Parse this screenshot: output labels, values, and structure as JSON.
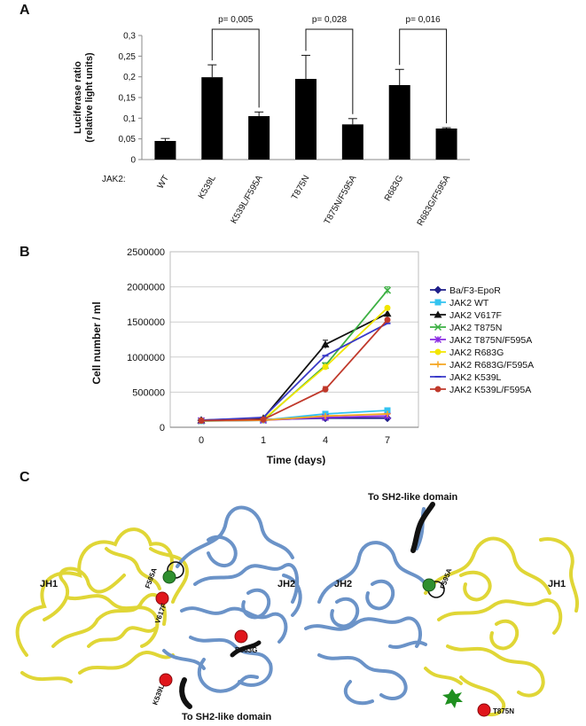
{
  "panels": {
    "a": "A",
    "b": "B",
    "c": "C"
  },
  "chart_data": [
    {
      "type": "bar",
      "ylabel": "Luciferase ratio",
      "ylabel2": "(relative light units)",
      "ylim": [
        0,
        0.3
      ],
      "yticks": [
        "0",
        "0,05",
        "0,1",
        "0,15",
        "0,2",
        "0,25",
        "0,3"
      ],
      "row_label": "JAK2:",
      "categories": [
        "WT",
        "K539L",
        "K539L/F595A",
        "T875N",
        "T875N/F595A",
        "R683G",
        "R683G/F595A"
      ],
      "values": [
        0.045,
        0.199,
        0.105,
        0.195,
        0.085,
        0.18,
        0.075
      ],
      "errors": [
        0.006,
        0.03,
        0.01,
        0.057,
        0.014,
        0.038,
        0.002
      ],
      "bar_color": "#000000",
      "brackets": [
        {
          "from": 1,
          "to": 2,
          "label": "p= 0,005"
        },
        {
          "from": 3,
          "to": 4,
          "label": "p= 0,028"
        },
        {
          "from": 5,
          "to": 6,
          "label": "p= 0,016"
        }
      ]
    },
    {
      "type": "line",
      "xlabel": "Time (days)",
      "ylabel": "Cell number / ml",
      "x": [
        "0",
        "1",
        "4",
        "7"
      ],
      "ylim": [
        0,
        2500000
      ],
      "yticks": [
        "0",
        "500000",
        "1000000",
        "1500000",
        "2000000",
        "2500000"
      ],
      "grid": true,
      "legend_position": "right",
      "series": [
        {
          "name": "Ba/F3-EpoR",
          "color": "#1f1f8a",
          "marker": "diamond",
          "values": [
            100000,
            110000,
            130000,
            130000
          ],
          "err": [
            0,
            0,
            0,
            0
          ]
        },
        {
          "name": "JAK2 WT",
          "color": "#33c3f0",
          "marker": "square",
          "values": [
            90000,
            100000,
            190000,
            240000
          ],
          "err": [
            0,
            0,
            20000,
            20000
          ]
        },
        {
          "name": "JAK2 V617F",
          "color": "#111111",
          "marker": "triangle",
          "values": [
            100000,
            130000,
            1180000,
            1620000
          ],
          "err": [
            0,
            0,
            60000,
            60000
          ]
        },
        {
          "name": "JAK2 T875N",
          "color": "#3cb043",
          "marker": "x",
          "values": [
            90000,
            100000,
            880000,
            1950000
          ],
          "err": [
            0,
            0,
            40000,
            50000
          ]
        },
        {
          "name": "JAK2 T875N/F595A",
          "color": "#8a2be2",
          "marker": "star",
          "values": [
            95000,
            100000,
            140000,
            160000
          ],
          "err": [
            0,
            0,
            0,
            0
          ]
        },
        {
          "name": "JAK2 R683G",
          "color": "#f2e600",
          "marker": "circle",
          "values": [
            95000,
            110000,
            860000,
            1700000
          ],
          "err": [
            0,
            0,
            0,
            0
          ]
        },
        {
          "name": "JAK2 R683G/F595A",
          "color": "#f5a623",
          "marker": "plus",
          "values": [
            95000,
            100000,
            160000,
            190000
          ],
          "err": [
            0,
            0,
            0,
            0
          ]
        },
        {
          "name": "JAK2 K539L",
          "color": "#3a3ac8",
          "marker": "line",
          "values": [
            100000,
            140000,
            1020000,
            1480000
          ],
          "err": [
            0,
            0,
            0,
            0
          ]
        },
        {
          "name": "JAK2 K539L/F595A",
          "color": "#c0392b",
          "marker": "circle",
          "values": [
            95000,
            110000,
            540000,
            1530000
          ],
          "err": [
            0,
            0,
            40000,
            0
          ]
        }
      ]
    }
  ],
  "structure": {
    "left": {
      "jh1": "JH1",
      "jh2": "JH2",
      "f595a": "F595A",
      "v617f": "V617F",
      "r683g": "R683G",
      "k539l": "K539L",
      "to_sh2": "To SH2-like domain"
    },
    "right": {
      "jh1": "JH1",
      "jh2": "JH2",
      "f595a": "F595A",
      "t875n": "T875N",
      "to_sh2": "To SH2-like domain"
    },
    "colors": {
      "jh1": "#e8e03a",
      "jh2": "#6f95c9",
      "red_sphere": "#e0151b",
      "green_sphere": "#2f8f2f"
    }
  }
}
